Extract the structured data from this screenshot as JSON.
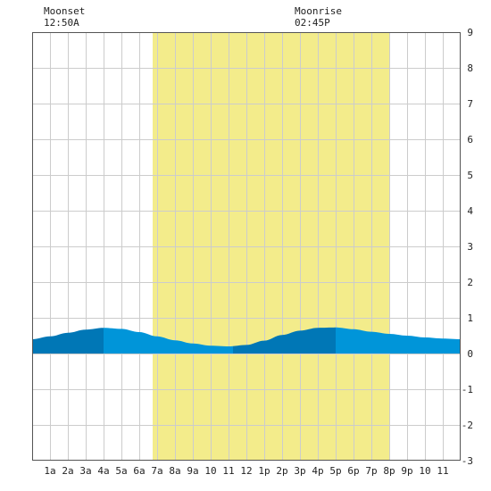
{
  "moon_events": [
    {
      "label": "Moonset",
      "time": "12:50A",
      "hour": 0.833
    },
    {
      "label": "Moonrise",
      "time": "02:45P",
      "hour": 14.75
    }
  ],
  "chart_data": {
    "type": "area",
    "title": "",
    "xlabel": "",
    "ylabel": "",
    "x_range": [
      0,
      24
    ],
    "ylim": [
      -3,
      9
    ],
    "grid": true,
    "x_tick_labels": [
      {
        "hour": 1,
        "label": "1a"
      },
      {
        "hour": 2,
        "label": "2a"
      },
      {
        "hour": 3,
        "label": "3a"
      },
      {
        "hour": 4,
        "label": "4a"
      },
      {
        "hour": 5,
        "label": "5a"
      },
      {
        "hour": 6,
        "label": "6a"
      },
      {
        "hour": 7,
        "label": "7a"
      },
      {
        "hour": 8,
        "label": "8a"
      },
      {
        "hour": 9,
        "label": "9a"
      },
      {
        "hour": 10,
        "label": "10"
      },
      {
        "hour": 11,
        "label": "11"
      },
      {
        "hour": 12,
        "label": "12"
      },
      {
        "hour": 13,
        "label": "1p"
      },
      {
        "hour": 14,
        "label": "2p"
      },
      {
        "hour": 15,
        "label": "3p"
      },
      {
        "hour": 16,
        "label": "4p"
      },
      {
        "hour": 17,
        "label": "5p"
      },
      {
        "hour": 18,
        "label": "6p"
      },
      {
        "hour": 19,
        "label": "7p"
      },
      {
        "hour": 20,
        "label": "8p"
      },
      {
        "hour": 21,
        "label": "9p"
      },
      {
        "hour": 22,
        "label": "10"
      },
      {
        "hour": 23,
        "label": "11"
      }
    ],
    "y_tick_labels": [
      "9",
      "8",
      "7",
      "6",
      "5",
      "4",
      "3",
      "2",
      "1",
      "0",
      "-1",
      "-2",
      "-3"
    ],
    "daylight": {
      "start_hour": 6.75,
      "end_hour": 20.0
    },
    "tide_points": [
      {
        "x": 0,
        "y": 0.4
      },
      {
        "x": 1,
        "y": 0.48
      },
      {
        "x": 2,
        "y": 0.58
      },
      {
        "x": 3,
        "y": 0.67
      },
      {
        "x": 4,
        "y": 0.72
      },
      {
        "x": 5,
        "y": 0.69
      },
      {
        "x": 6,
        "y": 0.6
      },
      {
        "x": 7,
        "y": 0.48
      },
      {
        "x": 8,
        "y": 0.37
      },
      {
        "x": 9,
        "y": 0.28
      },
      {
        "x": 10,
        "y": 0.22
      },
      {
        "x": 11,
        "y": 0.2
      },
      {
        "x": 12,
        "y": 0.24
      },
      {
        "x": 13,
        "y": 0.36
      },
      {
        "x": 14,
        "y": 0.52
      },
      {
        "x": 15,
        "y": 0.64
      },
      {
        "x": 16,
        "y": 0.72
      },
      {
        "x": 17,
        "y": 0.73
      },
      {
        "x": 18,
        "y": 0.68
      },
      {
        "x": 19,
        "y": 0.61
      },
      {
        "x": 20,
        "y": 0.55
      },
      {
        "x": 21,
        "y": 0.5
      },
      {
        "x": 22,
        "y": 0.45
      },
      {
        "x": 23,
        "y": 0.42
      },
      {
        "x": 24,
        "y": 0.4
      }
    ],
    "tide_bands": [
      {
        "start_hour": 0,
        "end_hour": 4,
        "shade": "dark"
      },
      {
        "start_hour": 4,
        "end_hour": 11.25,
        "shade": "light"
      },
      {
        "start_hour": 11.25,
        "end_hour": 17,
        "shade": "dark"
      },
      {
        "start_hour": 17,
        "end_hour": 24,
        "shade": "light"
      }
    ],
    "colors": {
      "daylight": "#f3ec8b",
      "tide_dark": "#0077b6",
      "tide_light": "#0095d9",
      "grid": "#cccccc",
      "axis": "#555555",
      "text": "#222222"
    }
  }
}
